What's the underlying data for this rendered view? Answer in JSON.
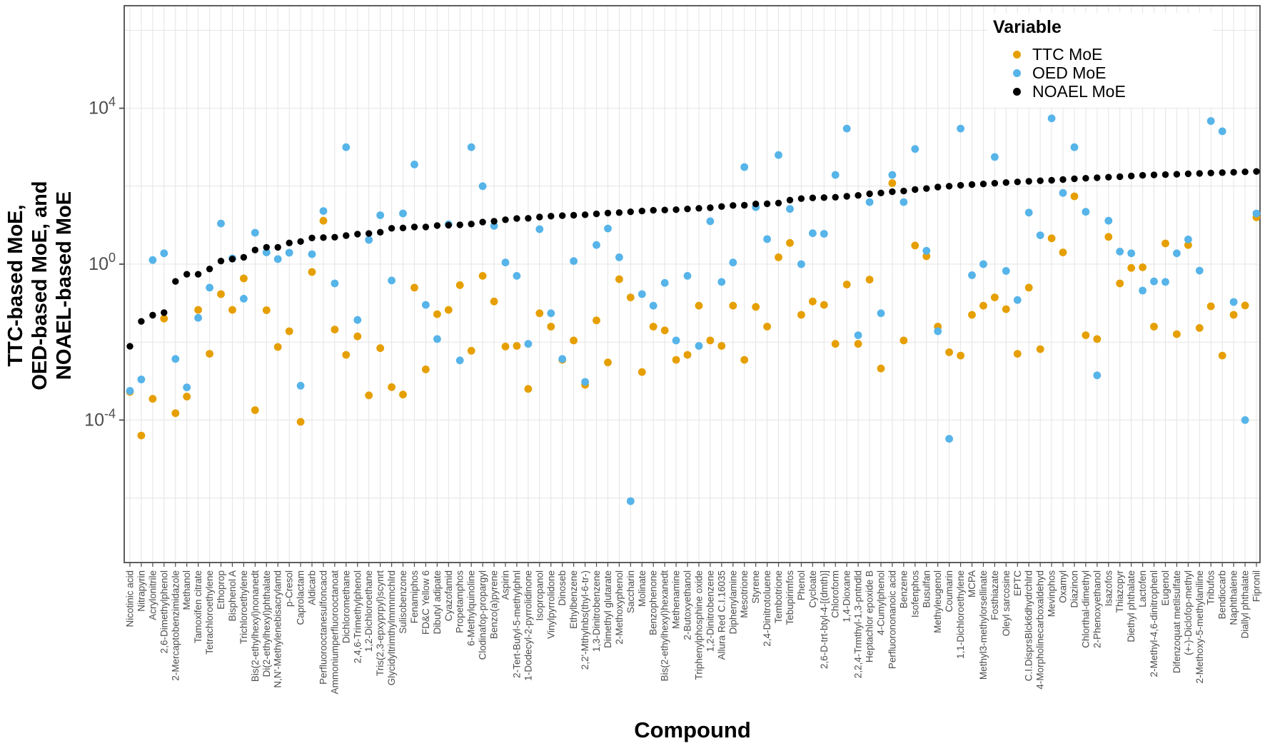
{
  "legend": {
    "title": "Variable",
    "items": [
      {
        "label": "TTC MoE",
        "color": "#E69F00"
      },
      {
        "label": "OED MoE",
        "color": "#56B4E9"
      },
      {
        "label": "NOAEL MoE",
        "color": "#000000"
      }
    ]
  },
  "axes": {
    "x_label": "Compound",
    "y_label_lines": [
      "TTC-based MoE,",
      "OED-based MoE, and",
      "NOAEL-based MoE"
    ],
    "y_ticks": [
      {
        "base": "10",
        "exp": "4",
        "log": 4
      },
      {
        "base": "10",
        "exp": "0",
        "log": 0
      },
      {
        "base": "10",
        "exp": "-4",
        "log": -4
      }
    ],
    "gridline_logs": [
      6,
      4,
      2,
      0,
      -2,
      -4,
      -6
    ],
    "tick_color": "#4d4d4d",
    "grid_color": "#e4e4e4",
    "border_color": "#4d4d4d"
  },
  "chart_data": {
    "type": "scatter",
    "title": "",
    "xlabel": "Compound",
    "ylabel": "TTC-based MoE, OED-based MoE, and NOAEL-based MoE",
    "y_scale": "log10",
    "ylim_log": [
      -7.6,
      6.6
    ],
    "legend_position": "top-right-inside",
    "grid": true,
    "categories": [
      "Nicotinic acid",
      "Nitrapyrin",
      "Acrylonitrile",
      "2,6-Dimethylphenol",
      "2-Mercaptobenzimidazole",
      "Methanol",
      "Tamoxifen citrate",
      "Tetrachloroethylene",
      "Ethoprop",
      "Bisphenol A",
      "Trichloroethylene",
      "Bis(2-ethylhexyl)nonanedt",
      "Di(2-ethylhexyl)phthalate",
      "N,N'-Methylenebisacrylamd",
      "p-Cresol",
      "Caprolactam",
      "Aldicarb",
      "Perfluorooctanesulfoncacd",
      "Ammoniumperfluorooctanoat",
      "Dichloromethane",
      "2,4,6-Trimethylphenol",
      "1,2-Dichloroethane",
      "Tris(2,3-epxyprpyl)scynrt",
      "Glycidyltrimthylmmnmchlrd",
      "Sulisobenzone",
      "Fenamiphos",
      "FD&C Yellow 6",
      "Dibutyl adipate",
      "Cyazofamid",
      "Propetamphos",
      "6-Methylquinoline",
      "Clodinafop-propargyl",
      "Benzo(a)pyrene",
      "Aspirin",
      "2-Tert-Butyl-5-methylphnl",
      "1-Dodecyl-2-pyrrolidinone",
      "Isopropanol",
      "Vinylpyrrolidone",
      "Dinoseb",
      "Ethylbenzene",
      "2,2'-Mthylnbs(thyl-6-tr-)",
      "1,3-Dinitrobenzene",
      "Dimethyl glutarate",
      "2-Methoxyphenol",
      "Saccharin",
      "Molinate",
      "Benzophenone",
      "Bis(2-ethylhexyl)hexanedt",
      "Methenamine",
      "2-Butoxyethanol",
      "Triphenylphosphine oxide",
      "1,2-Dinitrobenzene",
      "Allura Red C.I.16035",
      "Diphenylamine",
      "Mesotrione",
      "Styrene",
      "2,4-Dinitrotoluene",
      "Tembotrione",
      "Tebupirimfos",
      "Phenol",
      "Cycloate",
      "2,6-D-trt-btyl-4-[(dmth)]",
      "Chloroform",
      "1,4-Dioxane",
      "2,2,4-Trmthyl-1,3-pntndld",
      "Heptachlor epoxide B",
      "4-Cumylphenol",
      "Perfluorononanoic acid",
      "Benzene",
      "Isofenphos",
      "Busulfan",
      "Methyleugenol",
      "Coumarin",
      "1,1-Dichloroethylene",
      "MCPA",
      "Methyl3-methylorsellinate",
      "Fosthiazate",
      "Oleyl sarcosine",
      "EPTC",
      "C.I.DisprsBlck6dhydrchlrd",
      "4-Morpholinecarboxaldehyd",
      "Mevinphos",
      "Oxamyl",
      "Diazinon",
      "Chlorthal-dimethyl",
      "2-Phenoxyethanol",
      "Isazofos",
      "Thiazopyr",
      "Diethyl phthalate",
      "Lactofen",
      "2-Methyl-4,6-dinitrophenl",
      "Eugenol",
      "Difenzoquat metilsulfate",
      "(+-)-Diclofop-methyl",
      "2-Methoxy-5-methylaniline",
      "Tribufos",
      "Bendiocarb",
      "Naphthalene",
      "Diallyl phthalate",
      "Fipronil"
    ],
    "series": [
      {
        "name": "TTC MoE",
        "color": "#E69F00",
        "values": [
          0.00053,
          4e-05,
          0.00035,
          0.04,
          0.00015,
          0.0004,
          0.067,
          0.005,
          0.17,
          0.067,
          0.43,
          0.00018,
          0.066,
          0.0075,
          0.019,
          9e-05,
          0.63,
          13,
          0.021,
          0.0047,
          0.014,
          0.00043,
          0.007,
          0.0007,
          0.00045,
          0.25,
          0.002,
          0.052,
          0.067,
          0.29,
          0.006,
          0.5,
          0.11,
          0.0077,
          0.008,
          0.00063,
          0.055,
          0.025,
          0.0035,
          0.011,
          0.0008,
          0.036,
          0.003,
          0.41,
          0.14,
          0.0017,
          0.025,
          0.02,
          0.0035,
          0.0047,
          0.086,
          0.011,
          0.008,
          0.086,
          0.0035,
          0.08,
          0.025,
          1.5,
          3.5,
          0.05,
          0.11,
          0.09,
          0.009,
          0.3,
          0.009,
          0.4,
          0.0021,
          120,
          0.011,
          3,
          1.6,
          0.025,
          0.0055,
          0.0045,
          0.05,
          0.086,
          0.14,
          0.07,
          0.005,
          0.25,
          0.0066,
          4.6,
          2.0,
          55,
          0.015,
          0.012,
          5,
          0.32,
          0.8,
          0.83,
          0.025,
          3.4,
          0.016,
          3.1,
          0.023,
          0.083,
          0.0045,
          0.05,
          0.087,
          16
        ]
      },
      {
        "name": "OED MoE",
        "color": "#56B4E9",
        "values": [
          0.00056,
          0.0011,
          1.27,
          1.9,
          0.0037,
          0.00069,
          0.042,
          0.25,
          11,
          1.4,
          0.13,
          6.4,
          2.0,
          1.35,
          1.96,
          0.00076,
          1.8,
          23,
          0.32,
          1000,
          0.037,
          4.2,
          18,
          0.38,
          20,
          360,
          0.09,
          0.012,
          10.5,
          0.0034,
          1000,
          100,
          9.6,
          1.1,
          0.5,
          0.009,
          7.9,
          0.055,
          0.0037,
          1.2,
          0.00095,
          3.1,
          8.2,
          1.5,
          8.3e-07,
          0.17,
          0.086,
          0.33,
          0.011,
          0.5,
          0.008,
          12.6,
          0.35,
          1.1,
          310,
          29,
          4.4,
          630,
          26,
          1.0,
          6.2,
          6.0,
          195,
          3000,
          0.015,
          39,
          0.055,
          195,
          39,
          900,
          2.2,
          0.019,
          3.3e-05,
          3000,
          0.52,
          1.0,
          560,
          0.67,
          0.12,
          21,
          5.5,
          5500,
          67,
          1000,
          22,
          0.0014,
          13,
          2.1,
          1.9,
          0.21,
          0.36,
          0.35,
          1.9,
          4.3,
          0.68,
          4700,
          2560,
          0.107,
          0.0001,
          20
        ]
      },
      {
        "name": "NOAEL MoE",
        "color": "#000000",
        "values": [
          0.0078,
          0.034,
          0.049,
          0.057,
          0.36,
          0.55,
          0.55,
          0.75,
          1.2,
          1.35,
          1.5,
          2.3,
          2.7,
          2.7,
          3.5,
          3.8,
          4.7,
          4.8,
          4.9,
          5.4,
          5.9,
          6.1,
          6.6,
          8.3,
          8.5,
          9.0,
          9.0,
          9.8,
          10,
          10.2,
          10.7,
          12,
          12.6,
          13.8,
          14.8,
          15,
          16.2,
          17,
          17.5,
          18,
          18.5,
          19.5,
          20.5,
          21,
          22,
          23,
          24,
          24.5,
          25,
          26,
          27,
          28,
          30,
          32,
          32.5,
          35,
          35.5,
          37,
          44,
          48,
          50,
          51,
          52,
          55,
          58,
          64,
          67,
          72,
          75,
          82,
          87,
          95,
          100,
          105,
          110,
          114,
          119,
          124,
          129,
          134,
          138,
          142,
          148,
          155,
          160,
          165,
          170,
          175,
          183,
          190,
          195,
          198,
          202,
          208,
          213,
          218,
          223,
          228,
          233,
          238
        ]
      }
    ]
  }
}
